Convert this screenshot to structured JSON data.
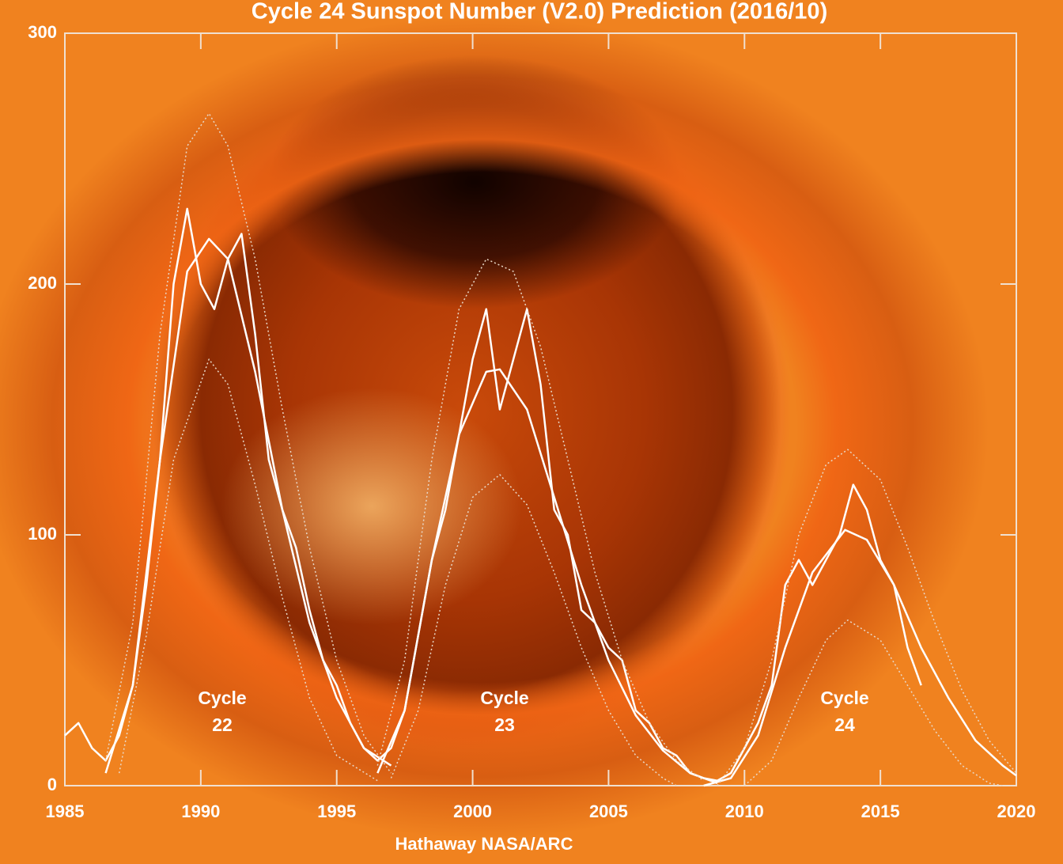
{
  "chart_data": {
    "type": "line",
    "title": "Cycle 24 Sunspot Number (V2.0) Prediction (2016/10)",
    "credit": "Hathaway  NASA/ARC",
    "annotations": [
      [
        "Cycle",
        "22"
      ],
      [
        "Cycle",
        "23"
      ],
      [
        "Cycle",
        "24"
      ]
    ],
    "xlim": [
      1985,
      2020
    ],
    "xticks": [
      1985,
      1990,
      1995,
      2000,
      2005,
      2010,
      2015,
      2020
    ],
    "ylim": [
      0,
      300
    ],
    "yticks": [
      0,
      100,
      200,
      300
    ],
    "series": [
      {
        "color": "#ffffff",
        "width": 2.5,
        "dash": "none",
        "x": [
          1985.0,
          1985.5,
          1986.0,
          1986.5,
          1987.0,
          1987.5,
          1988.0,
          1988.5,
          1989.0,
          1989.5,
          1990.0,
          1990.5,
          1991.0,
          1991.5,
          1992.0,
          1992.5,
          1993.0,
          1993.5,
          1994.0,
          1994.5,
          1995.0,
          1995.5,
          1996.0,
          1996.5,
          1997.0,
          1997.5,
          1998.0,
          1998.5,
          1999.0,
          1999.5,
          2000.0,
          2000.5,
          2001.0,
          2001.5,
          2002.0,
          2002.5,
          2003.0,
          2003.5,
          2004.0,
          2004.5,
          2005.0,
          2005.5,
          2006.0,
          2006.5,
          2007.0,
          2007.5,
          2008.0,
          2008.5,
          2009.0,
          2009.5,
          2010.0,
          2010.5,
          2011.0,
          2011.5,
          2012.0,
          2012.5,
          2013.0,
          2013.5,
          2014.0,
          2014.5,
          2015.0,
          2015.5,
          2016.0,
          2016.5
        ],
        "values": [
          20,
          25,
          15,
          10,
          20,
          40,
          80,
          130,
          200,
          230,
          200,
          190,
          210,
          220,
          180,
          130,
          110,
          95,
          70,
          50,
          40,
          25,
          15,
          10,
          15,
          30,
          60,
          90,
          110,
          140,
          170,
          190,
          150,
          170,
          190,
          160,
          110,
          100,
          70,
          65,
          55,
          50,
          30,
          25,
          15,
          12,
          5,
          3,
          2,
          5,
          15,
          25,
          40,
          80,
          90,
          80,
          90,
          100,
          120,
          110,
          90,
          80,
          55,
          40
        ]
      },
      {
        "color": "#ffffff",
        "width": 2.5,
        "dash": "none",
        "x": [
          1986.5,
          1987.5,
          1988.5,
          1989.5,
          1990.3,
          1991,
          1992,
          1993,
          1994,
          1995,
          1996,
          1997
        ],
        "values": [
          5,
          40,
          130,
          205,
          218,
          210,
          165,
          110,
          65,
          35,
          15,
          8
        ]
      },
      {
        "color": "#e8d8c8",
        "width": 1.5,
        "dash": "2 3",
        "x": [
          1986.5,
          1987.5,
          1988.5,
          1989.5,
          1990.3,
          1991,
          1992,
          1993,
          1994,
          1995,
          1996,
          1997
        ],
        "values": [
          10,
          65,
          180,
          255,
          268,
          255,
          210,
          150,
          95,
          50,
          20,
          5
        ]
      },
      {
        "color": "#e8d8c8",
        "width": 1.5,
        "dash": "2 3",
        "x": [
          1987,
          1988,
          1989,
          1990.3,
          1991,
          1992,
          1993,
          1994,
          1995,
          1996.5
        ],
        "values": [
          5,
          60,
          130,
          170,
          160,
          120,
          75,
          35,
          12,
          2
        ]
      },
      {
        "color": "#ffffff",
        "width": 2.5,
        "dash": "none",
        "x": [
          1996.5,
          1997.5,
          1998.5,
          1999.5,
          2000.5,
          2001,
          2002,
          2003,
          2004,
          2005,
          2006,
          2007,
          2008,
          2009
        ],
        "values": [
          5,
          30,
          90,
          140,
          165,
          166,
          150,
          115,
          80,
          50,
          28,
          14,
          5,
          1
        ]
      },
      {
        "color": "#e8d8c8",
        "width": 1.5,
        "dash": "2 3",
        "x": [
          1996.5,
          1997.5,
          1998.5,
          1999.5,
          2000.5,
          2001.5,
          2002.5,
          2003.5,
          2004.5,
          2005.5,
          2006.5,
          2007.5,
          2008.5
        ],
        "values": [
          8,
          50,
          130,
          190,
          210,
          205,
          175,
          130,
          85,
          50,
          25,
          10,
          2
        ]
      },
      {
        "color": "#e8d8c8",
        "width": 1.5,
        "dash": "2 3",
        "x": [
          1997,
          1998,
          1999,
          2000,
          2001,
          2002,
          2003,
          2004,
          2005,
          2006,
          2007,
          2007.5
        ],
        "values": [
          3,
          30,
          80,
          115,
          124,
          112,
          85,
          55,
          30,
          12,
          3,
          0
        ]
      },
      {
        "color": "#ffffff",
        "width": 2.5,
        "dash": "none",
        "x": [
          2008.5,
          2009.5,
          2010.5,
          2011.5,
          2012.5,
          2013.7,
          2014.5,
          2015.5,
          2016.5,
          2017.5,
          2018.5,
          2019.5,
          2020
        ],
        "values": [
          0,
          3,
          20,
          55,
          85,
          102,
          98,
          80,
          55,
          35,
          18,
          8,
          4
        ]
      },
      {
        "color": "#e8d8c8",
        "width": 1.5,
        "dash": "2 3",
        "x": [
          2009,
          2010,
          2011,
          2012,
          2013,
          2013.8,
          2015,
          2016,
          2017,
          2018,
          2019,
          2020
        ],
        "values": [
          0,
          15,
          50,
          100,
          128,
          134,
          122,
          95,
          65,
          38,
          18,
          5
        ]
      },
      {
        "color": "#e8d8c8",
        "width": 1.5,
        "dash": "2 3",
        "x": [
          2010,
          2011,
          2012,
          2013,
          2013.8,
          2015,
          2016,
          2017,
          2018,
          2019,
          2019.5
        ],
        "values": [
          0,
          10,
          35,
          58,
          66,
          58,
          40,
          22,
          8,
          1,
          0
        ]
      }
    ]
  }
}
